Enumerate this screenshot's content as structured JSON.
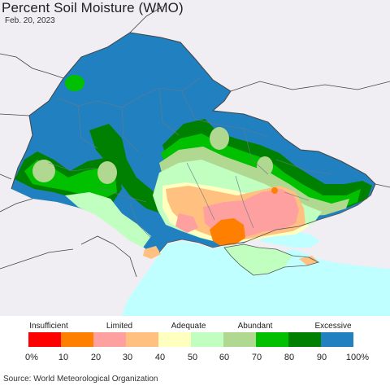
{
  "title": "Percent Soil Moisture (WMO)",
  "date": "Feb. 20, 2023",
  "source": "Source: World Meteorological Organization",
  "legend": {
    "categories": [
      "Insufficient",
      "Limited",
      "Adequate",
      "Abundant",
      "Excessive"
    ],
    "ticks": [
      "0%",
      "10",
      "20",
      "30",
      "40",
      "50",
      "60",
      "70",
      "80",
      "90",
      "100%"
    ],
    "colors": [
      "#ff0000",
      "#ff7f00",
      "#ffa0a0",
      "#ffc080",
      "#ffffc0",
      "#c0ffc0",
      "#b0d890",
      "#00c000",
      "#008000",
      "#2080c0"
    ]
  },
  "map_colors": {
    "background": "#f0eef2",
    "sea": "#c0ffff",
    "excessive": "#2080c0",
    "wet": "#008000",
    "abundant": "#00c000",
    "moderate": "#b0d890",
    "adequate": "#c0ffc0",
    "near_normal": "#ffffc0",
    "limited_light": "#ffc080",
    "limited": "#ffa0a0",
    "dry": "#ff7f00"
  }
}
